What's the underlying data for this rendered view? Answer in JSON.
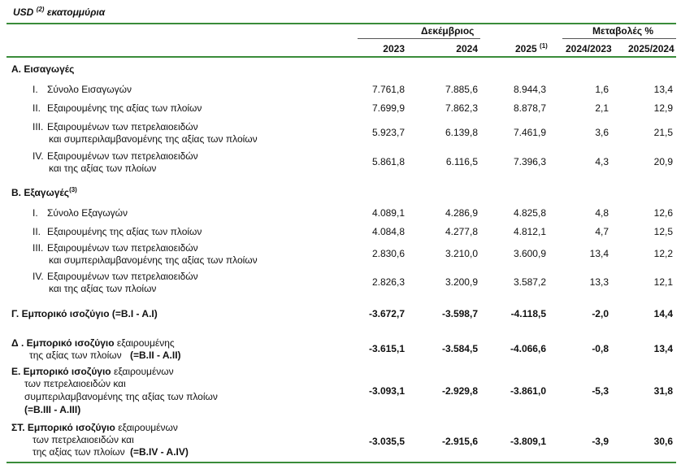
{
  "header": {
    "unit_label": "USD",
    "unit_sup": "(2)",
    "unit_suffix": "εκατομμύρια",
    "group_december": "Δεκέμβριος",
    "group_changes": "Μεταβολές %",
    "col_2023": "2023",
    "col_2024": "2024",
    "col_2025": "2025",
    "col_2025_sup": "(1)",
    "col_ch1": "2024/2023",
    "col_ch2": "2025/2024"
  },
  "sections": {
    "imports_title": "Α. Εισαγωγές",
    "exports_title": "Β. Εξαγωγές",
    "exports_sup": "(3)"
  },
  "rows": [
    {
      "num": "I.",
      "label1": "Σύνολο Εισαγωγών",
      "label2": "",
      "v2023": "7.761,8",
      "v2024": "7.885,6",
      "v2025": "8.944,3",
      "ch1": "1,6",
      "ch2": "13,4"
    },
    {
      "num": "II.",
      "label1": "Εξαιρουμένης της αξίας των πλοίων",
      "label2": "",
      "v2023": "7.699,9",
      "v2024": "7.862,3",
      "v2025": "8.878,7",
      "ch1": "2,1",
      "ch2": "12,9"
    },
    {
      "num": "III.",
      "label1": "Εξαιρουμένων των πετρελαιοειδών",
      "label2": "και συμπεριλαμβανομένης της αξίας των πλοίων",
      "v2023": "5.923,7",
      "v2024": "6.139,8",
      "v2025": "7.461,9",
      "ch1": "3,6",
      "ch2": "21,5"
    },
    {
      "num": "IV.",
      "label1": "Εξαιρουμένων των πετρελαιοειδών",
      "label2": "και  της αξίας των πλοίων",
      "v2023": "5.861,8",
      "v2024": "6.116,5",
      "v2025": "7.396,3",
      "ch1": "4,3",
      "ch2": "20,9"
    },
    {
      "num": "I.",
      "label1": "Σύνολο Εξαγωγών",
      "label2": "",
      "v2023": "4.089,1",
      "v2024": "4.286,9",
      "v2025": "4.825,8",
      "ch1": "4,8",
      "ch2": "12,6"
    },
    {
      "num": "II.",
      "label1": "Εξαιρουμένης της αξίας των πλοίων",
      "label2": "",
      "v2023": "4.084,8",
      "v2024": "4.277,8",
      "v2025": "4.812,1",
      "ch1": "4,7",
      "ch2": "12,5"
    },
    {
      "num": "III.",
      "label1": "Εξαιρουμένων των πετρελαιοειδών",
      "label2": "και συμπεριλαμβανομένης της αξίας των πλοίων",
      "v2023": "2.830,6",
      "v2024": "3.210,0",
      "v2025": "3.600,9",
      "ch1": "13,4",
      "ch2": "12,2"
    },
    {
      "num": "IV.",
      "label1": "Εξαιρουμένων των πετρελαιοειδών",
      "label2": "και της αξίας των πλοίων",
      "v2023": "2.826,3",
      "v2024": "3.200,9",
      "v2025": "3.587,2",
      "ch1": "13,3",
      "ch2": "12,1"
    }
  ],
  "balances": [
    {
      "lines": [
        "Γ. Εμπορικό ισοζύγιο (=B.I - A.I)"
      ],
      "v2023": "-3.672,7",
      "v2024": "-3.598,7",
      "v2025": "-4.118,5",
      "ch1": "-2,0",
      "ch2": "14,4"
    },
    {
      "bold_head": "Δ . Εμπορικό ισοζύγιο",
      "lines": [
        " εξαιρουμένης",
        "της αξίας των πλοίων",
        " (=B.II - A.II)"
      ],
      "v2023": "-3.615,1",
      "v2024": "-3.584,5",
      "v2025": "-4.066,6",
      "ch1": "-0,8",
      "ch2": "13,4"
    },
    {
      "bold_head": "Ε. Εμπορικό ισοζύγιο",
      "lines": [
        " εξαιρουμένων",
        "των πετρελαιοειδών και",
        "συμπεριλαμβανομένης της αξίας των πλοίων",
        "(=B.III - A.III)"
      ],
      "v2023": "-3.093,1",
      "v2024": "-2.929,8",
      "v2025": "-3.861,0",
      "ch1": "-5,3",
      "ch2": "31,8"
    },
    {
      "bold_head": "ΣΤ. Εμπορικό ισοζύγιο",
      "lines": [
        " εξαιρουμένων",
        "των πετρελαιοειδών και",
        "της αξίας των πλοίων",
        " (=B.IV - A.IV)"
      ],
      "v2023": "-3.035,5",
      "v2024": "-2.915,6",
      "v2025": "-3.809,1",
      "ch1": "-3,9",
      "ch2": "30,6"
    }
  ],
  "colors": {
    "rule": "#3a8c3a",
    "text": "#111111"
  }
}
